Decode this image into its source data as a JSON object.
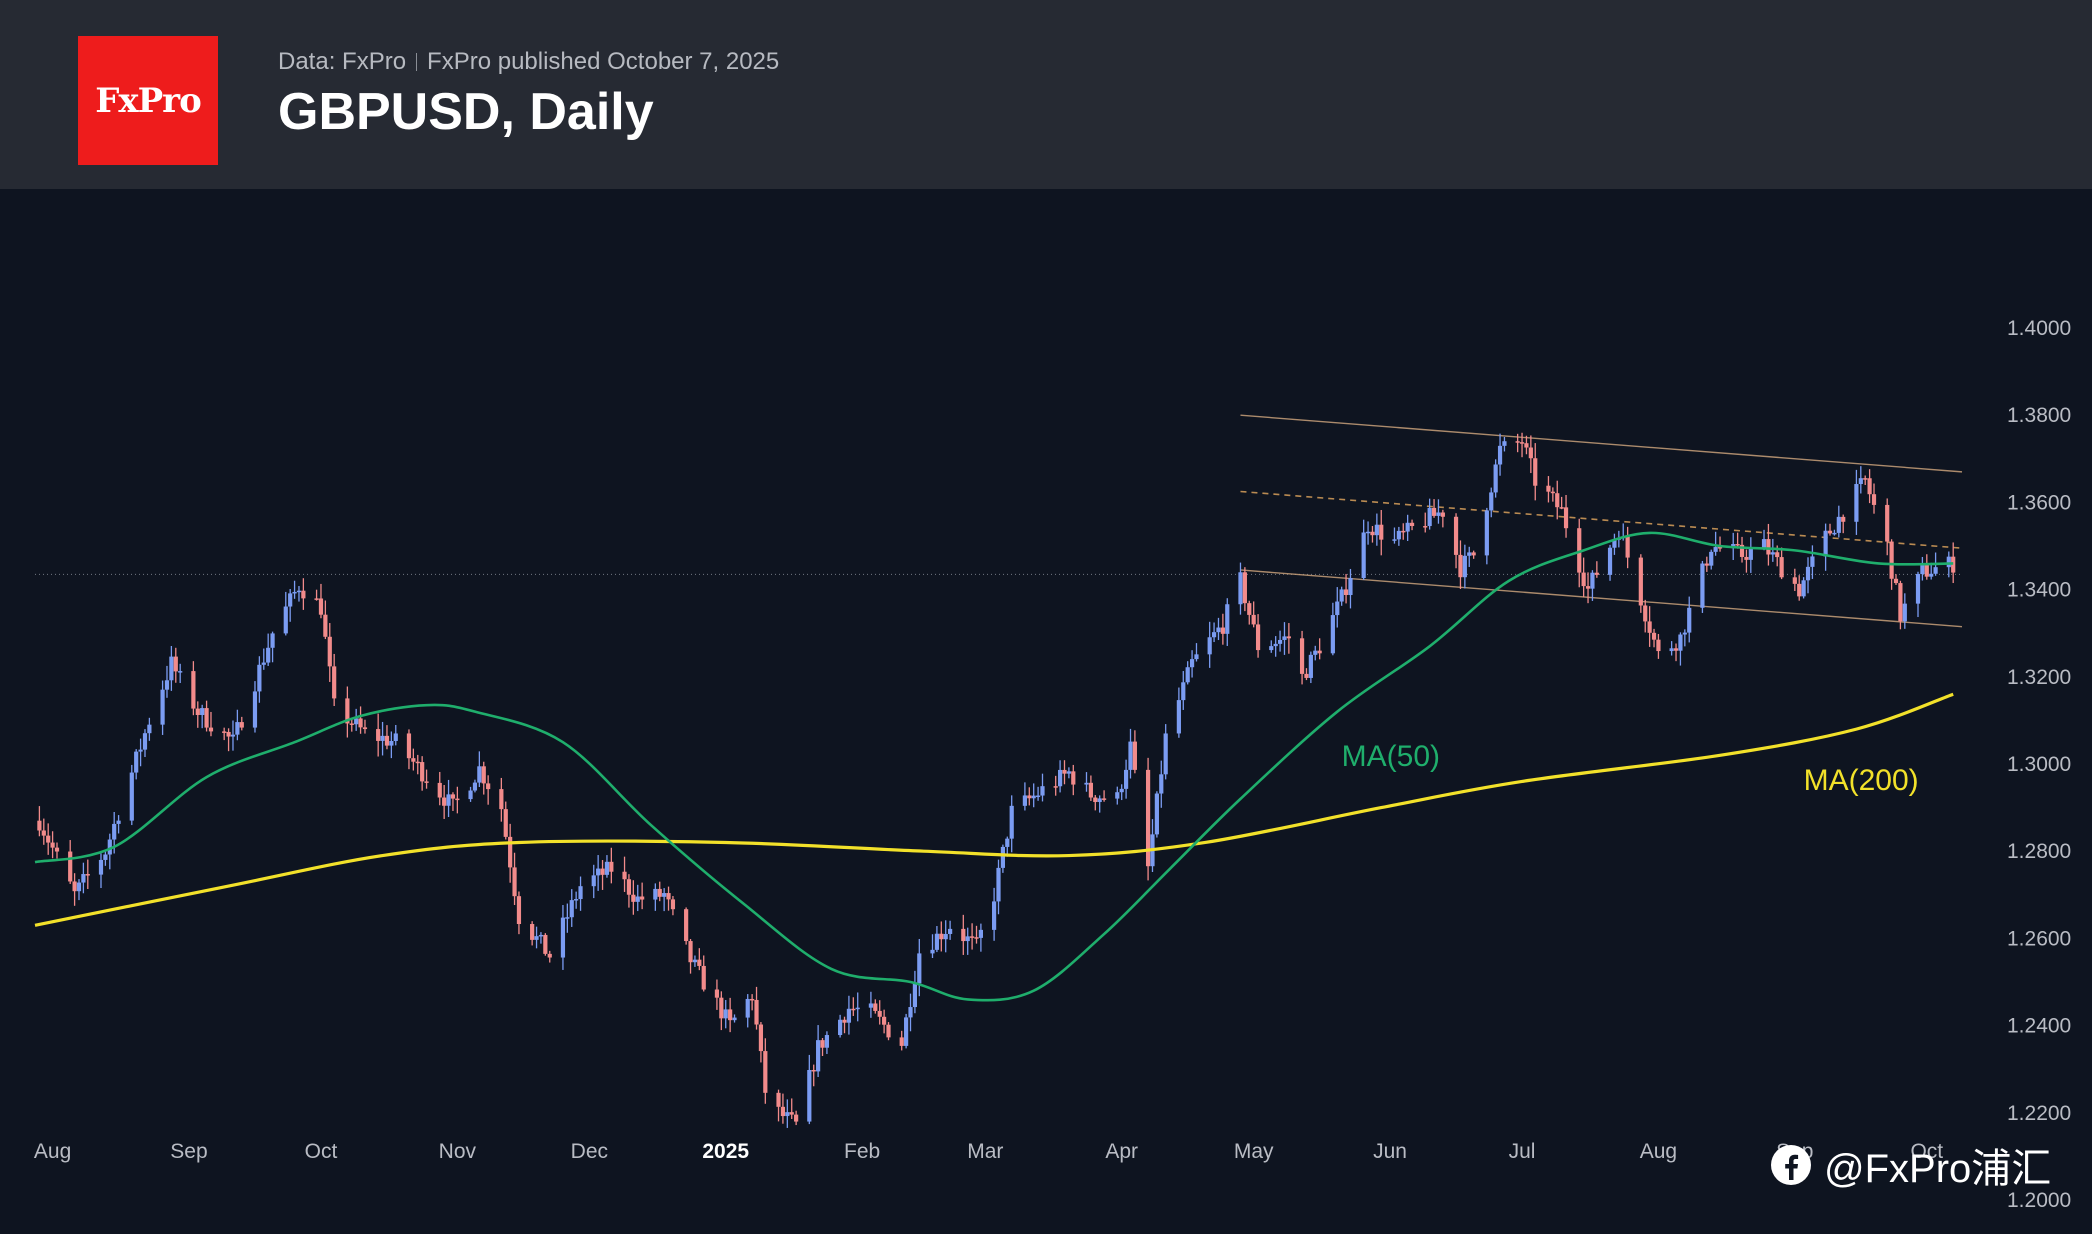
{
  "header": {
    "logo_text": "FxPro",
    "source_label": "Data: FxPro",
    "published_label": "FxPro published October 7, 2025",
    "title": "GBPUSD, Daily"
  },
  "watermark": {
    "text": "@FxPro浦汇",
    "icon": "facebook-icon"
  },
  "colors": {
    "bull": "#7b9cf2",
    "bear": "#f28b8b",
    "ma50": "#1fae6c",
    "ma200": "#f2e12a",
    "channel": "#c8a07a",
    "midline": "#d9a05b",
    "background": "#0e1420"
  },
  "chart_data": {
    "type": "candlestick",
    "title": "GBPUSD, Daily",
    "ylim": [
      1.2,
      1.4
    ],
    "yticks": [
      "1.4000",
      "1.3800",
      "1.3600",
      "1.3400",
      "1.3200",
      "1.3000",
      "1.2800",
      "1.2600",
      "1.2400",
      "1.2200",
      "1.2000"
    ],
    "x_start": "2024-07-28",
    "x_end": "2025-10-09",
    "xticks": [
      {
        "label": "Aug",
        "date": "2024-08-01"
      },
      {
        "label": "Sep",
        "date": "2024-09-01"
      },
      {
        "label": "Oct",
        "date": "2024-10-01"
      },
      {
        "label": "Nov",
        "date": "2024-11-01"
      },
      {
        "label": "Dec",
        "date": "2024-12-01"
      },
      {
        "label": "2025",
        "date": "2025-01-01",
        "bold": true
      },
      {
        "label": "Feb",
        "date": "2025-02-01"
      },
      {
        "label": "Mar",
        "date": "2025-03-01"
      },
      {
        "label": "Apr",
        "date": "2025-04-01"
      },
      {
        "label": "May",
        "date": "2025-05-01"
      },
      {
        "label": "Jun",
        "date": "2025-06-01"
      },
      {
        "label": "Jul",
        "date": "2025-07-01"
      },
      {
        "label": "Aug",
        "date": "2025-08-01"
      },
      {
        "label": "Sep",
        "date": "2025-09-01"
      },
      {
        "label": "Oct",
        "date": "2025-10-01"
      }
    ],
    "price_anchors": [
      [
        "2024-07-29",
        1.287
      ],
      [
        "2024-08-06",
        1.27
      ],
      [
        "2024-08-13",
        1.28
      ],
      [
        "2024-08-23",
        1.31
      ],
      [
        "2024-08-28",
        1.323
      ],
      [
        "2024-09-03",
        1.312
      ],
      [
        "2024-09-11",
        1.305
      ],
      [
        "2024-09-20",
        1.33
      ],
      [
        "2024-09-26",
        1.341
      ],
      [
        "2024-10-01",
        1.336
      ],
      [
        "2024-10-04",
        1.313
      ],
      [
        "2024-10-11",
        1.307
      ],
      [
        "2024-10-18",
        1.305
      ],
      [
        "2024-10-25",
        1.297
      ],
      [
        "2024-10-31",
        1.29
      ],
      [
        "2024-11-06",
        1.299
      ],
      [
        "2024-11-11",
        1.29
      ],
      [
        "2024-11-15",
        1.265
      ],
      [
        "2024-11-22",
        1.256
      ],
      [
        "2024-11-29",
        1.272
      ],
      [
        "2024-12-06",
        1.276
      ],
      [
        "2024-12-12",
        1.269
      ],
      [
        "2024-12-18",
        1.27
      ],
      [
        "2024-12-24",
        1.255
      ],
      [
        "2025-01-02",
        1.24
      ],
      [
        "2025-01-07",
        1.247
      ],
      [
        "2025-01-10",
        1.225
      ],
      [
        "2025-01-13",
        1.22
      ],
      [
        "2025-01-17",
        1.217
      ],
      [
        "2025-01-22",
        1.235
      ],
      [
        "2025-01-29",
        1.244
      ],
      [
        "2025-02-03",
        1.243
      ],
      [
        "2025-02-10",
        1.236
      ],
      [
        "2025-02-14",
        1.257
      ],
      [
        "2025-02-21",
        1.263
      ],
      [
        "2025-02-27",
        1.258
      ],
      [
        "2025-03-03",
        1.27
      ],
      [
        "2025-03-07",
        1.289
      ],
      [
        "2025-03-14",
        1.294
      ],
      [
        "2025-03-20",
        1.298
      ],
      [
        "2025-03-25",
        1.293
      ],
      [
        "2025-03-31",
        1.292
      ],
      [
        "2025-04-03",
        1.304
      ],
      [
        "2025-04-07",
        1.276
      ],
      [
        "2025-04-11",
        1.306
      ],
      [
        "2025-04-17",
        1.323
      ],
      [
        "2025-04-24",
        1.332
      ],
      [
        "2025-04-28",
        1.342
      ],
      [
        "2025-05-02",
        1.327
      ],
      [
        "2025-05-09",
        1.329
      ],
      [
        "2025-05-12",
        1.32
      ],
      [
        "2025-05-16",
        1.327
      ],
      [
        "2025-05-21",
        1.338
      ],
      [
        "2025-05-27",
        1.355
      ],
      [
        "2025-06-02",
        1.351
      ],
      [
        "2025-06-09",
        1.356
      ],
      [
        "2025-06-13",
        1.358
      ],
      [
        "2025-06-17",
        1.345
      ],
      [
        "2025-06-20",
        1.348
      ],
      [
        "2025-06-26",
        1.372
      ],
      [
        "2025-07-01",
        1.374
      ],
      [
        "2025-07-04",
        1.365
      ],
      [
        "2025-07-10",
        1.358
      ],
      [
        "2025-07-16",
        1.34
      ],
      [
        "2025-07-23",
        1.354
      ],
      [
        "2025-07-28",
        1.338
      ],
      [
        "2025-08-01",
        1.325
      ],
      [
        "2025-08-06",
        1.329
      ],
      [
        "2025-08-13",
        1.35
      ],
      [
        "2025-08-20",
        1.348
      ],
      [
        "2025-08-25",
        1.35
      ],
      [
        "2025-09-02",
        1.34
      ],
      [
        "2025-09-08",
        1.352
      ],
      [
        "2025-09-17",
        1.365
      ],
      [
        "2025-09-22",
        1.35
      ],
      [
        "2025-09-25",
        1.334
      ],
      [
        "2025-09-30",
        1.344
      ],
      [
        "2025-10-07",
        1.346
      ]
    ],
    "ma50": [
      [
        "2024-07-28",
        1.2775
      ],
      [
        "2024-08-15",
        1.281
      ],
      [
        "2024-09-05",
        1.297
      ],
      [
        "2024-09-25",
        1.305
      ],
      [
        "2024-10-10",
        1.311
      ],
      [
        "2024-10-25",
        1.3135
      ],
      [
        "2024-11-05",
        1.312
      ],
      [
        "2024-11-25",
        1.305
      ],
      [
        "2024-12-15",
        1.286
      ],
      [
        "2025-01-05",
        1.268
      ],
      [
        "2025-01-25",
        1.253
      ],
      [
        "2025-02-12",
        1.25
      ],
      [
        "2025-02-25",
        1.246
      ],
      [
        "2025-03-12",
        1.248
      ],
      [
        "2025-03-28",
        1.261
      ],
      [
        "2025-04-12",
        1.276
      ],
      [
        "2025-04-28",
        1.292
      ],
      [
        "2025-05-20",
        1.312
      ],
      [
        "2025-06-10",
        1.327
      ],
      [
        "2025-06-28",
        1.342
      ],
      [
        "2025-07-15",
        1.349
      ],
      [
        "2025-07-30",
        1.353
      ],
      [
        "2025-08-15",
        1.35
      ],
      [
        "2025-09-01",
        1.349
      ],
      [
        "2025-09-20",
        1.346
      ],
      [
        "2025-10-07",
        1.346
      ]
    ],
    "ma200": [
      [
        "2024-07-28",
        1.263
      ],
      [
        "2024-09-10",
        1.272
      ],
      [
        "2024-10-15",
        1.279
      ],
      [
        "2024-11-15",
        1.282
      ],
      [
        "2025-01-01",
        1.282
      ],
      [
        "2025-02-15",
        1.28
      ],
      [
        "2025-03-20",
        1.279
      ],
      [
        "2025-04-20",
        1.282
      ],
      [
        "2025-05-30",
        1.29
      ],
      [
        "2025-07-01",
        1.296
      ],
      [
        "2025-08-15",
        1.302
      ],
      [
        "2025-09-15",
        1.308
      ],
      [
        "2025-10-07",
        1.316
      ]
    ],
    "channel": {
      "upper": [
        [
          "2025-04-28",
          1.38
        ],
        [
          "2025-10-09",
          1.367
        ]
      ],
      "middle": [
        [
          "2025-04-28",
          1.3625
        ],
        [
          "2025-10-09",
          1.3495
        ]
      ],
      "lower": [
        [
          "2025-04-28",
          1.3445
        ],
        [
          "2025-10-09",
          1.3315
        ]
      ]
    },
    "reference_level": 1.3435,
    "annotations": [
      {
        "text": "MA(50)",
        "date": "2025-05-21",
        "price": 1.2995,
        "color": "ma50"
      },
      {
        "text": "MA(200)",
        "date": "2025-09-03",
        "price": 1.294,
        "color": "ma200"
      }
    ]
  }
}
